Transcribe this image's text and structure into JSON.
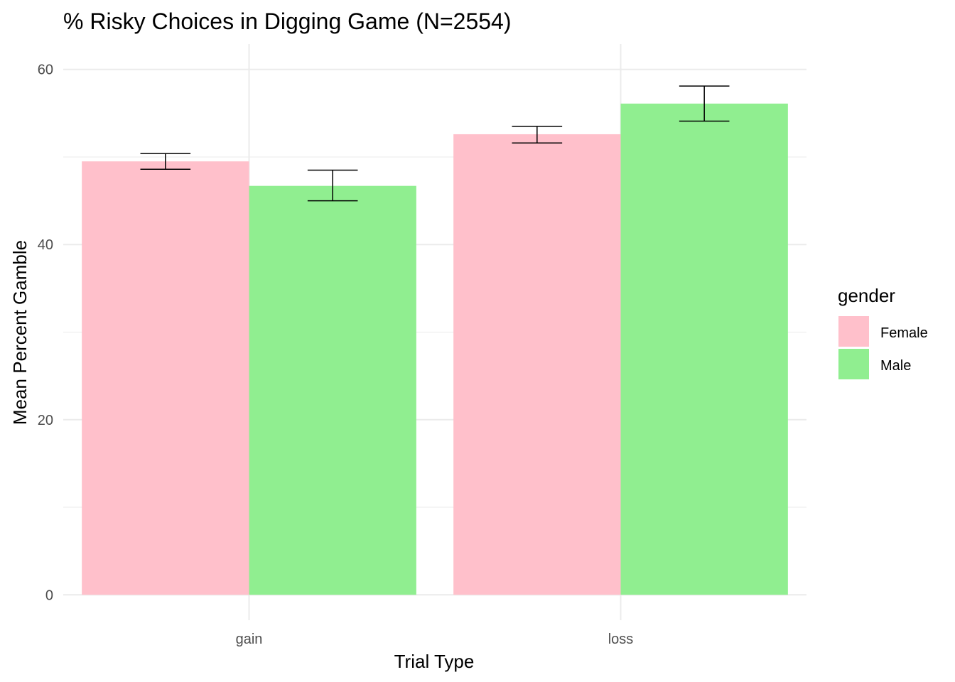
{
  "chart_data": {
    "type": "bar",
    "title": "% Risky Choices in Digging Game (N=2554)",
    "xlabel": "Trial Type",
    "ylabel": "Mean Percent Gamble",
    "categories": [
      "gain",
      "loss"
    ],
    "ylim": [
      -2.9,
      62.9
    ],
    "yticks": [
      0,
      20,
      40,
      60
    ],
    "grid": true,
    "legend": {
      "title": "gender",
      "placement": "right"
    },
    "series": [
      {
        "name": "Female",
        "color": "#FFC0CB",
        "values": [
          49.5,
          52.6
        ],
        "error_low": [
          48.6,
          51.6
        ],
        "error_high": [
          50.4,
          53.5
        ]
      },
      {
        "name": "Male",
        "color": "#90EE90",
        "values": [
          46.7,
          56.1
        ],
        "error_low": [
          45.0,
          54.1
        ],
        "error_high": [
          48.5,
          58.1
        ]
      }
    ]
  }
}
